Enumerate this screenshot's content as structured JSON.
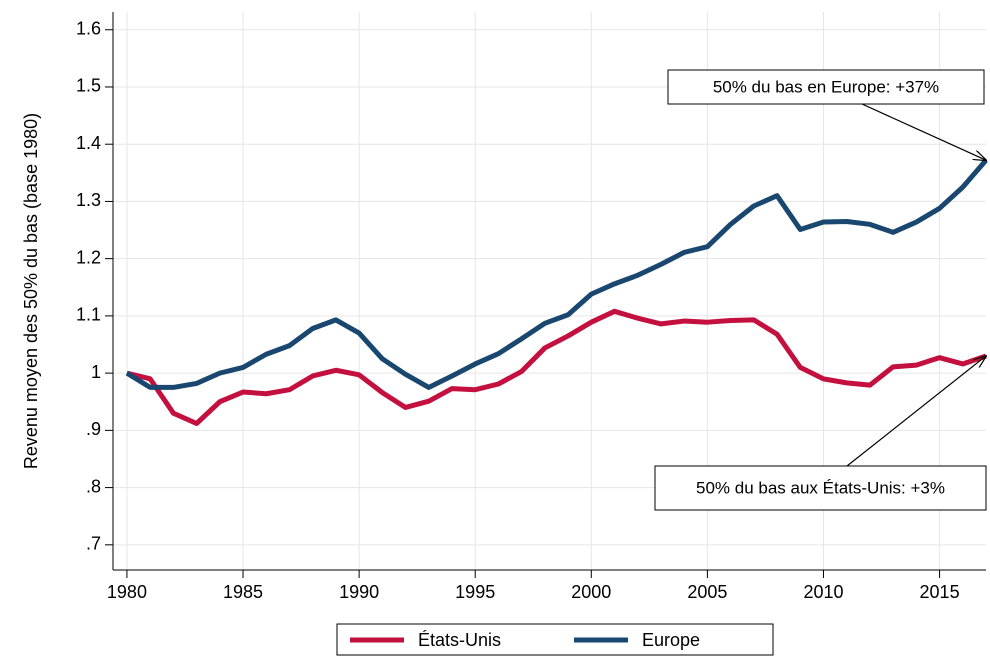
{
  "chart_data": {
    "type": "line",
    "ylabel": "Revenu moyen des 50% du bas (base 1980)",
    "x": [
      1980,
      1981,
      1982,
      1983,
      1984,
      1985,
      1986,
      1987,
      1988,
      1989,
      1990,
      1991,
      1992,
      1993,
      1994,
      1995,
      1996,
      1997,
      1998,
      1999,
      2000,
      2001,
      2002,
      2003,
      2004,
      2005,
      2006,
      2007,
      2008,
      2009,
      2010,
      2011,
      2012,
      2013,
      2014,
      2015,
      2016,
      2017
    ],
    "series": [
      {
        "name": "États-Unis",
        "color": "#c4103e",
        "values": [
          1.0,
          0.99,
          0.93,
          0.912,
          0.95,
          0.967,
          0.964,
          0.971,
          0.995,
          1.005,
          0.997,
          0.966,
          0.94,
          0.951,
          0.973,
          0.971,
          0.981,
          1.003,
          1.044,
          1.065,
          1.089,
          1.108,
          1.096,
          1.086,
          1.091,
          1.089,
          1.092,
          1.093,
          1.068,
          1.01,
          0.99,
          0.983,
          0.979,
          1.011,
          1.014,
          1.027,
          1.016,
          1.03
        ]
      },
      {
        "name": "Europe",
        "color": "#1a476f",
        "values": [
          1.0,
          0.975,
          0.975,
          0.982,
          1.0,
          1.01,
          1.033,
          1.048,
          1.078,
          1.093,
          1.07,
          1.025,
          0.998,
          0.975,
          0.995,
          1.016,
          1.034,
          1.06,
          1.087,
          1.102,
          1.138,
          1.156,
          1.171,
          1.19,
          1.211,
          1.221,
          1.26,
          1.292,
          1.31,
          1.251,
          1.264,
          1.265,
          1.26,
          1.246,
          1.264,
          1.288,
          1.325,
          1.372
        ]
      }
    ],
    "xlim": [
      1979.4,
      2017
    ],
    "xticks": [
      1980,
      1985,
      1990,
      1995,
      2000,
      2005,
      2010,
      2015
    ],
    "ylim": [
      0.656,
      1.631
    ],
    "yticks": [
      {
        "value": 0.7,
        "label": ".7"
      },
      {
        "value": 0.8,
        "label": ".8"
      },
      {
        "value": 0.9,
        "label": ".9"
      },
      1,
      1.1,
      1.2,
      1.3,
      1.4,
      1.5,
      1.6
    ],
    "grid": true,
    "annotations": [
      "50% du bas en Europe: +37%",
      "50% du bas aux États-Unis: +3%"
    ]
  }
}
